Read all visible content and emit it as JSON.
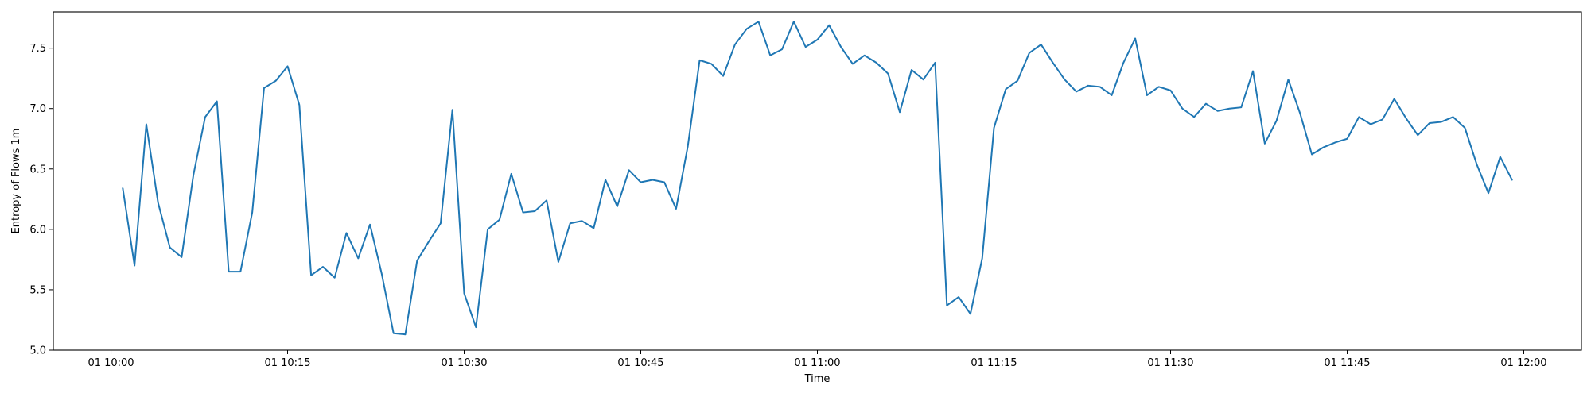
{
  "chart_data": {
    "type": "line",
    "xlabel": "Time",
    "ylabel": "Entropy of Flows 1m",
    "xlim": [
      "10:00",
      "12:00"
    ],
    "ylim": [
      5.0,
      7.8
    ],
    "x_ticks": [
      {
        "label": "01 10:00",
        "value": "10:00"
      },
      {
        "label": "01 10:15",
        "value": "10:15"
      },
      {
        "label": "01 10:30",
        "value": "10:30"
      },
      {
        "label": "01 10:45",
        "value": "10:45"
      },
      {
        "label": "01 11:00",
        "value": "11:00"
      },
      {
        "label": "01 11:15",
        "value": "11:15"
      },
      {
        "label": "01 11:30",
        "value": "11:30"
      },
      {
        "label": "01 11:45",
        "value": "11:45"
      },
      {
        "label": "01 12:00",
        "value": "12:00"
      }
    ],
    "y_ticks": [
      {
        "label": "5.0",
        "value": 5.0
      },
      {
        "label": "5.5",
        "value": 5.5
      },
      {
        "label": "6.0",
        "value": 6.0
      },
      {
        "label": "6.5",
        "value": 6.5
      },
      {
        "label": "7.0",
        "value": 7.0
      },
      {
        "label": "7.5",
        "value": 7.5
      }
    ],
    "grid": false,
    "series": [
      {
        "color": "#1f77b4",
        "x": [
          "10:01",
          "10:02",
          "10:03",
          "10:04",
          "10:05",
          "10:06",
          "10:07",
          "10:08",
          "10:09",
          "10:10",
          "10:11",
          "10:12",
          "10:13",
          "10:14",
          "10:15",
          "10:16",
          "10:17",
          "10:18",
          "10:19",
          "10:20",
          "10:21",
          "10:22",
          "10:23",
          "10:24",
          "10:25",
          "10:26",
          "10:27",
          "10:28",
          "10:29",
          "10:30",
          "10:31",
          "10:32",
          "10:33",
          "10:34",
          "10:35",
          "10:36",
          "10:37",
          "10:38",
          "10:39",
          "10:40",
          "10:41",
          "10:42",
          "10:43",
          "10:44",
          "10:45",
          "10:46",
          "10:47",
          "10:48",
          "10:49",
          "10:50",
          "10:51",
          "10:52",
          "10:53",
          "10:54",
          "10:55",
          "10:56",
          "10:57",
          "10:58",
          "10:59",
          "11:00",
          "11:01",
          "11:02",
          "11:03",
          "11:04",
          "11:05",
          "11:06",
          "11:07",
          "11:08",
          "11:09",
          "11:10",
          "11:11",
          "11:12",
          "11:13",
          "11:14",
          "11:15",
          "11:16",
          "11:17",
          "11:18",
          "11:19",
          "11:20",
          "11:21",
          "11:22",
          "11:23",
          "11:24",
          "11:25",
          "11:26",
          "11:27",
          "11:28",
          "11:29",
          "11:30",
          "11:31",
          "11:32",
          "11:33",
          "11:34",
          "11:35",
          "11:36",
          "11:37",
          "11:38",
          "11:39",
          "11:40",
          "11:41",
          "11:42",
          "11:43",
          "11:44",
          "11:45",
          "11:46",
          "11:47",
          "11:48",
          "11:49",
          "11:50",
          "11:51",
          "11:52",
          "11:53",
          "11:54",
          "11:55",
          "11:56",
          "11:57",
          "11:58",
          "11:59"
        ],
        "y": [
          6.34,
          5.7,
          6.87,
          6.22,
          5.85,
          5.77,
          6.45,
          6.93,
          7.06,
          5.65,
          5.65,
          6.14,
          7.17,
          7.23,
          7.35,
          7.03,
          5.62,
          5.69,
          5.6,
          5.97,
          5.76,
          6.04,
          5.63,
          5.14,
          5.13,
          5.74,
          5.9,
          6.05,
          6.99,
          5.47,
          5.19,
          6.0,
          6.08,
          6.46,
          6.14,
          6.15,
          6.24,
          5.73,
          6.05,
          6.07,
          6.01,
          6.41,
          6.19,
          6.49,
          6.39,
          6.41,
          6.39,
          6.17,
          6.69,
          7.4,
          7.37,
          7.27,
          7.53,
          7.66,
          7.72,
          7.44,
          7.49,
          7.72,
          7.51,
          7.57,
          7.69,
          7.51,
          7.37,
          7.44,
          7.38,
          7.29,
          6.97,
          7.32,
          7.24,
          7.38,
          5.37,
          5.44,
          5.3,
          5.76,
          6.84,
          7.16,
          7.23,
          7.46,
          7.53,
          7.38,
          7.24,
          7.14,
          7.19,
          7.18,
          7.11,
          7.38,
          7.58,
          7.11,
          7.18,
          7.15,
          7.0,
          6.93,
          7.04,
          6.98,
          7.0,
          7.01,
          7.31,
          6.71,
          6.9,
          7.24,
          6.96,
          6.62,
          6.68,
          6.72,
          6.75,
          6.93,
          6.87,
          6.91,
          7.08,
          6.92,
          6.78,
          6.88,
          6.89,
          6.93,
          6.84,
          6.54,
          6.3,
          6.6,
          6.41
        ]
      }
    ]
  }
}
